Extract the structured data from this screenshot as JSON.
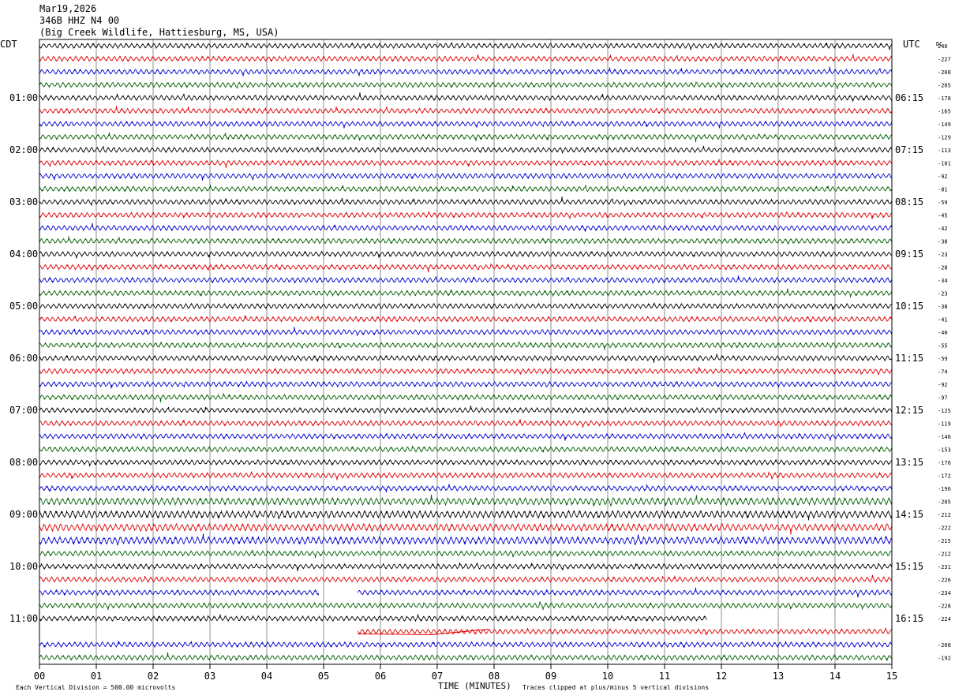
{
  "header": {
    "date": "Mar19,2026",
    "station": "346B HHZ N4 00",
    "location": "(Big Creek Wildlife, Hattiesburg, MS, USA)"
  },
  "axes": {
    "left_title": "CDT",
    "right_title": "UTC",
    "dc_title": "DC",
    "xlabel": "TIME (MINUTES)"
  },
  "footer": {
    "vertical_division": "Each Vertical Division =  500.00 microvolts",
    "clip_note": "Traces clipped at plus/minus 5 vertical divisions"
  },
  "colors": {
    "black": "#000000",
    "red": "#e00000",
    "blue": "#0000d0",
    "green": "#006000"
  },
  "chart_data": {
    "type": "line",
    "title": "346B HHZ N4 00",
    "xlabel": "TIME (MINUTES)",
    "xlim": [
      0,
      15
    ],
    "x_ticks": [
      "00",
      "01",
      "02",
      "03",
      "04",
      "05",
      "06",
      "07",
      "08",
      "09",
      "10",
      "11",
      "12",
      "13",
      "14",
      "15"
    ],
    "rows_per_hour": 4,
    "row_minutes": 15,
    "left_time_labels": [
      "01:00",
      "02:00",
      "03:00",
      "04:00",
      "05:00",
      "06:00",
      "07:00",
      "08:00",
      "09:00",
      "10:00",
      "11:00"
    ],
    "right_time_labels": [
      "06:15",
      "07:15",
      "08:15",
      "09:15",
      "10:15",
      "11:15",
      "12:15",
      "13:15",
      "14:15",
      "15:15",
      "16:15"
    ],
    "dc_offsets": [
      240,
      -227,
      -208,
      -205,
      -178,
      -165,
      -149,
      -129,
      -113,
      -101,
      -92,
      -81,
      -59,
      -45,
      -42,
      -38,
      -23,
      -28,
      -34,
      -23,
      -38,
      -41,
      -40,
      -55,
      -59,
      -74,
      -92,
      -97,
      -125,
      -119,
      -146,
      -153,
      -176,
      -172,
      -196,
      -205,
      -212,
      -222,
      -215,
      -212,
      -231,
      -226,
      -234,
      -228,
      -224,
      null,
      -208,
      -192
    ],
    "row_colors": [
      "black",
      "red",
      "blue",
      "green"
    ],
    "gaps": [
      {
        "row": 42,
        "start_min": 4.92,
        "end_min": 5.6
      },
      {
        "row": 44,
        "start_min": 11.75,
        "end_min": 15
      },
      {
        "row": 45,
        "start_min": 0,
        "end_min": 5.6
      }
    ]
  }
}
